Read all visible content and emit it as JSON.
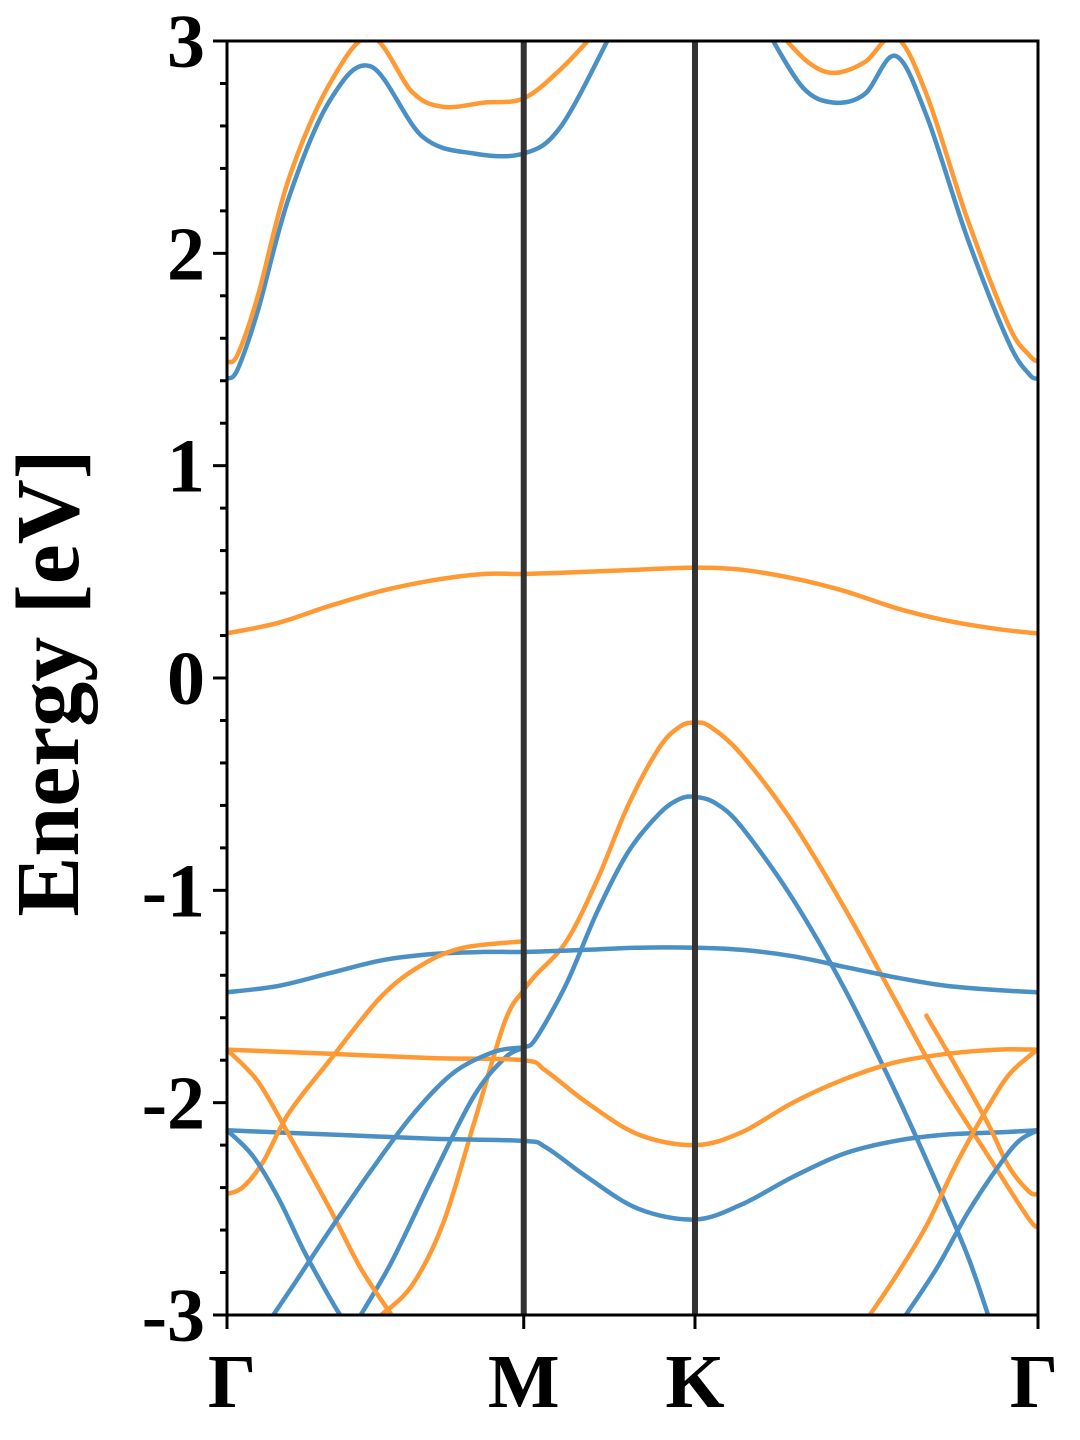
{
  "chart_data": {
    "type": "line",
    "title": "",
    "xlabel": "",
    "ylabel": "Energy [eV]",
    "ylim": [
      -3,
      3
    ],
    "grid": false,
    "legend": "none",
    "x_ticks": [
      "Γ",
      "M",
      "K",
      "Γ"
    ],
    "y_ticks": [
      "-3",
      "-2",
      "-1",
      "0",
      "1",
      "2",
      "3"
    ],
    "x_tick_positions": [
      0,
      0.577,
      0.91,
      1.577
    ],
    "series_colors": {
      "blue": "#4a90c4",
      "orange": "#ff9933"
    },
    "series": [
      {
        "color": "blue",
        "points": [
          [
            0.0,
            1.41
          ],
          [
            0.02,
            1.45
          ],
          [
            0.06,
            1.73
          ],
          [
            0.12,
            2.26
          ],
          [
            0.2,
            2.72
          ],
          [
            0.28,
            2.88
          ],
          [
            0.38,
            2.55
          ],
          [
            0.48,
            2.47
          ],
          [
            0.577,
            2.47
          ],
          [
            0.65,
            2.6
          ],
          [
            0.75,
            3.05
          ]
        ]
      },
      {
        "color": "blue",
        "points": [
          [
            1.05,
            3.05
          ],
          [
            1.12,
            2.78
          ],
          [
            1.18,
            2.71
          ],
          [
            1.24,
            2.75
          ],
          [
            1.3,
            2.93
          ],
          [
            1.36,
            2.65
          ],
          [
            1.44,
            2.07
          ],
          [
            1.52,
            1.58
          ],
          [
            1.56,
            1.43
          ],
          [
            1.577,
            1.41
          ]
        ]
      },
      {
        "color": "orange",
        "points": [
          [
            0.0,
            1.49
          ],
          [
            0.02,
            1.52
          ],
          [
            0.06,
            1.8
          ],
          [
            0.12,
            2.35
          ],
          [
            0.2,
            2.8
          ],
          [
            0.28,
            3.02
          ],
          [
            0.36,
            2.76
          ],
          [
            0.42,
            2.69
          ],
          [
            0.5,
            2.71
          ],
          [
            0.577,
            2.73
          ],
          [
            0.65,
            2.87
          ],
          [
            0.72,
            3.05
          ]
        ]
      },
      {
        "color": "orange",
        "points": [
          [
            1.07,
            3.05
          ],
          [
            1.13,
            2.9
          ],
          [
            1.18,
            2.85
          ],
          [
            1.24,
            2.9
          ],
          [
            1.3,
            3.02
          ],
          [
            1.36,
            2.75
          ],
          [
            1.44,
            2.16
          ],
          [
            1.52,
            1.66
          ],
          [
            1.56,
            1.52
          ],
          [
            1.577,
            1.49
          ]
        ]
      },
      {
        "color": "orange",
        "points": [
          [
            0.0,
            0.21
          ],
          [
            0.1,
            0.26
          ],
          [
            0.2,
            0.34
          ],
          [
            0.3,
            0.41
          ],
          [
            0.4,
            0.46
          ],
          [
            0.5,
            0.49
          ],
          [
            0.577,
            0.49
          ],
          [
            0.7,
            0.5
          ],
          [
            0.8,
            0.51
          ],
          [
            0.91,
            0.52
          ],
          [
            1.0,
            0.51
          ],
          [
            1.1,
            0.47
          ],
          [
            1.2,
            0.41
          ],
          [
            1.3,
            0.33
          ],
          [
            1.4,
            0.27
          ],
          [
            1.5,
            0.23
          ],
          [
            1.577,
            0.21
          ]
        ]
      },
      {
        "color": "orange",
        "points": [
          [
            0.3,
            -3.0
          ],
          [
            0.36,
            -2.86
          ],
          [
            0.42,
            -2.57
          ],
          [
            0.48,
            -2.1
          ],
          [
            0.54,
            -1.62
          ],
          [
            0.577,
            -1.47
          ],
          [
            0.6,
            -1.4
          ],
          [
            0.66,
            -1.24
          ],
          [
            0.72,
            -0.95
          ],
          [
            0.78,
            -0.6
          ],
          [
            0.84,
            -0.33
          ],
          [
            0.88,
            -0.23
          ],
          [
            0.91,
            -0.21
          ],
          [
            0.94,
            -0.23
          ],
          [
            1.0,
            -0.36
          ],
          [
            1.1,
            -0.68
          ],
          [
            1.2,
            -1.08
          ],
          [
            1.3,
            -1.52
          ],
          [
            1.38,
            -1.87
          ],
          [
            1.48,
            -2.25
          ],
          [
            1.56,
            -2.55
          ],
          [
            1.577,
            -2.58
          ]
        ]
      },
      {
        "color": "blue",
        "points": [
          [
            0.26,
            -3.0
          ],
          [
            0.32,
            -2.75
          ],
          [
            0.4,
            -2.35
          ],
          [
            0.48,
            -1.97
          ],
          [
            0.54,
            -1.79
          ],
          [
            0.577,
            -1.74
          ],
          [
            0.6,
            -1.7
          ],
          [
            0.66,
            -1.44
          ],
          [
            0.72,
            -1.1
          ],
          [
            0.78,
            -0.82
          ],
          [
            0.84,
            -0.64
          ],
          [
            0.88,
            -0.57
          ],
          [
            0.91,
            -0.56
          ],
          [
            0.95,
            -0.59
          ],
          [
            1.0,
            -0.7
          ],
          [
            1.1,
            -1.04
          ],
          [
            1.2,
            -1.46
          ],
          [
            1.3,
            -1.95
          ],
          [
            1.38,
            -2.38
          ],
          [
            1.44,
            -2.72
          ],
          [
            1.48,
            -3.0
          ]
        ]
      },
      {
        "color": "blue",
        "points": [
          [
            0.0,
            -1.48
          ],
          [
            0.1,
            -1.45
          ],
          [
            0.2,
            -1.39
          ],
          [
            0.3,
            -1.33
          ],
          [
            0.4,
            -1.3
          ],
          [
            0.5,
            -1.29
          ],
          [
            0.577,
            -1.29
          ],
          [
            0.7,
            -1.28
          ],
          [
            0.8,
            -1.27
          ],
          [
            0.91,
            -1.27
          ],
          [
            1.0,
            -1.28
          ],
          [
            1.1,
            -1.31
          ],
          [
            1.2,
            -1.36
          ],
          [
            1.3,
            -1.41
          ],
          [
            1.4,
            -1.45
          ],
          [
            1.5,
            -1.47
          ],
          [
            1.577,
            -1.48
          ]
        ]
      },
      {
        "color": "orange",
        "points": [
          [
            0.0,
            -1.75
          ],
          [
            0.2,
            -1.77
          ],
          [
            0.4,
            -1.79
          ],
          [
            0.577,
            -1.8
          ],
          [
            0.62,
            -1.85
          ],
          [
            0.7,
            -2.0
          ],
          [
            0.8,
            -2.15
          ],
          [
            0.91,
            -2.2
          ],
          [
            1.0,
            -2.14
          ],
          [
            1.1,
            -2.0
          ],
          [
            1.2,
            -1.89
          ],
          [
            1.3,
            -1.81
          ],
          [
            1.4,
            -1.77
          ],
          [
            1.5,
            -1.75
          ],
          [
            1.577,
            -1.75
          ]
        ]
      },
      {
        "color": "blue",
        "points": [
          [
            0.0,
            -2.13
          ],
          [
            0.2,
            -2.15
          ],
          [
            0.4,
            -2.17
          ],
          [
            0.577,
            -2.18
          ],
          [
            0.62,
            -2.21
          ],
          [
            0.7,
            -2.35
          ],
          [
            0.8,
            -2.5
          ],
          [
            0.91,
            -2.55
          ],
          [
            1.0,
            -2.48
          ],
          [
            1.1,
            -2.35
          ],
          [
            1.2,
            -2.24
          ],
          [
            1.3,
            -2.18
          ],
          [
            1.4,
            -2.15
          ],
          [
            1.5,
            -2.14
          ],
          [
            1.577,
            -2.13
          ]
        ]
      },
      {
        "color": "orange",
        "points": [
          [
            0.0,
            -1.75
          ],
          [
            0.06,
            -1.9
          ],
          [
            0.12,
            -2.15
          ],
          [
            0.2,
            -2.5
          ],
          [
            0.26,
            -2.78
          ],
          [
            0.32,
            -3.0
          ]
        ]
      },
      {
        "color": "orange",
        "points": [
          [
            0.0,
            -2.43
          ],
          [
            0.03,
            -2.4
          ],
          [
            0.07,
            -2.28
          ],
          [
            0.12,
            -2.05
          ],
          [
            0.2,
            -1.8
          ],
          [
            0.3,
            -1.5
          ],
          [
            0.38,
            -1.35
          ],
          [
            0.46,
            -1.27
          ],
          [
            0.577,
            -1.24
          ]
        ]
      },
      {
        "color": "blue",
        "points": [
          [
            0.0,
            -2.13
          ],
          [
            0.05,
            -2.25
          ],
          [
            0.1,
            -2.45
          ],
          [
            0.15,
            -2.7
          ],
          [
            0.2,
            -2.92
          ],
          [
            0.22,
            -3.0
          ]
        ]
      },
      {
        "color": "blue",
        "points": [
          [
            0.09,
            -3.0
          ],
          [
            0.14,
            -2.82
          ],
          [
            0.2,
            -2.6
          ],
          [
            0.28,
            -2.32
          ],
          [
            0.36,
            -2.06
          ],
          [
            0.44,
            -1.86
          ],
          [
            0.52,
            -1.76
          ],
          [
            0.577,
            -1.74
          ]
        ]
      },
      {
        "color": "orange",
        "points": [
          [
            1.25,
            -3.0
          ],
          [
            1.3,
            -2.82
          ],
          [
            1.36,
            -2.58
          ],
          [
            1.42,
            -2.28
          ],
          [
            1.48,
            -2.02
          ],
          [
            1.52,
            -1.87
          ],
          [
            1.56,
            -1.78
          ],
          [
            1.577,
            -1.75
          ]
        ]
      },
      {
        "color": "orange",
        "points": [
          [
            1.36,
            -1.59
          ],
          [
            1.42,
            -1.84
          ],
          [
            1.48,
            -2.1
          ],
          [
            1.52,
            -2.3
          ],
          [
            1.56,
            -2.42
          ],
          [
            1.577,
            -2.43
          ]
        ]
      },
      {
        "color": "blue",
        "points": [
          [
            1.32,
            -3.0
          ],
          [
            1.38,
            -2.78
          ],
          [
            1.44,
            -2.52
          ],
          [
            1.5,
            -2.3
          ],
          [
            1.54,
            -2.18
          ],
          [
            1.577,
            -2.13
          ]
        ]
      }
    ]
  }
}
